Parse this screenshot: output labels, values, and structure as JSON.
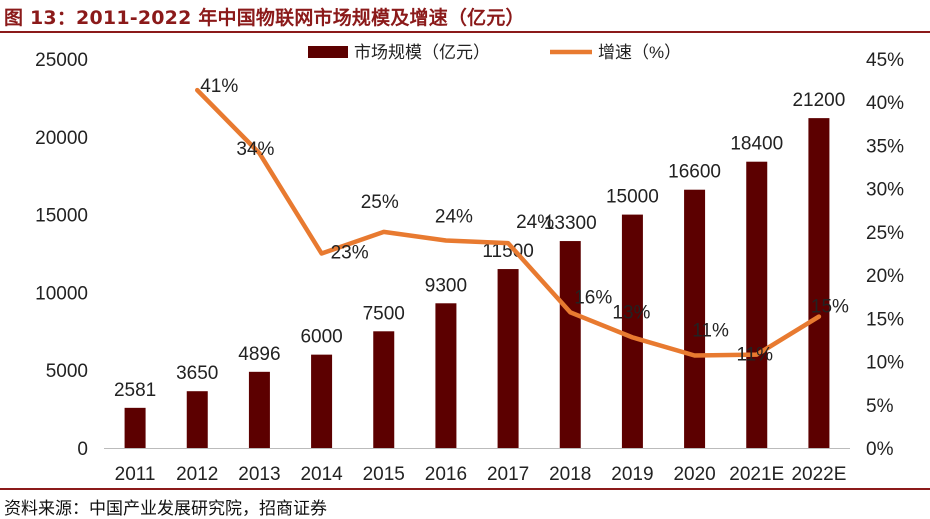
{
  "figure": {
    "title": "图 13：2011-2022 年中国物联网市场规模及增速（亿元）",
    "source": "资料来源：中国产业发展研究院，招商证券"
  },
  "colors": {
    "bar": "#5C0000",
    "line": "#E87A30",
    "rule": "#8B1A1A"
  },
  "chart_data": {
    "type": "bar",
    "categories": [
      "2011",
      "2012",
      "2013",
      "2014",
      "2015",
      "2016",
      "2017",
      "2018",
      "2019",
      "2020",
      "2021E",
      "2022E"
    ],
    "series": [
      {
        "name": "市场规模（亿元）",
        "type": "bar",
        "axis": "left",
        "values": [
          2581,
          3650,
          4896,
          6000,
          7500,
          9300,
          11500,
          13300,
          15000,
          16600,
          18400,
          21200
        ],
        "labels": [
          "2581",
          "3650",
          "4896",
          "6000",
          "7500",
          "9300",
          "11500",
          "13300",
          "15000",
          "16600",
          "18400",
          "21200"
        ]
      },
      {
        "name": "增速（%）",
        "type": "line",
        "axis": "right",
        "values": [
          null,
          41.4,
          34.1,
          22.5,
          25.0,
          24.0,
          23.7,
          15.7,
          12.8,
          10.7,
          10.8,
          15.2
        ],
        "labels": [
          "",
          "41%",
          "34%",
          "23%",
          "25%",
          "24%",
          "24%",
          "16%",
          "13%",
          "11%",
          "11%",
          "15%"
        ]
      }
    ],
    "y_left": {
      "min": 0,
      "max": 25000,
      "ticks": [
        "0",
        "5000",
        "10000",
        "15000",
        "20000",
        "25000"
      ]
    },
    "y_right": {
      "min": 0,
      "max": 45,
      "ticks": [
        "0%",
        "5%",
        "10%",
        "15%",
        "20%",
        "25%",
        "30%",
        "35%",
        "40%",
        "45%"
      ]
    },
    "legend": {
      "position": "top"
    },
    "grid": false
  }
}
